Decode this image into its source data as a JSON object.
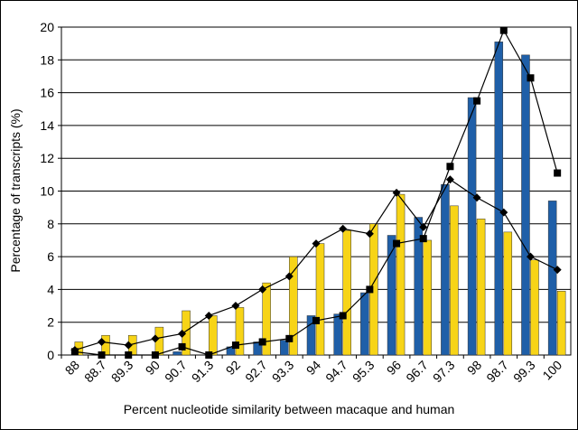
{
  "chart_data": {
    "type": "bar_line",
    "x_label": "Percent nucleotide similarity between macaque and human",
    "y_label": "Percentage of transcripts (%)",
    "categories": [
      "88",
      "88.7",
      "89.3",
      "90",
      "90.7",
      "91.3",
      "92",
      "92.7",
      "93.3",
      "94",
      "94.7",
      "95.3",
      "96",
      "96.7",
      "97.3",
      "98",
      "98.7",
      "99.3",
      "100"
    ],
    "series": [
      {
        "kind": "bar",
        "color": "#1f5fa8",
        "values": [
          0,
          0,
          0,
          0,
          0.2,
          0,
          0.5,
          0.8,
          0.9,
          2.4,
          2.5,
          3.8,
          7.3,
          8.4,
          10.4,
          15.7,
          19.1,
          18.3,
          9.4
        ]
      },
      {
        "kind": "bar",
        "color": "#f7d417",
        "values": [
          0.8,
          1.2,
          1.2,
          1.7,
          2.7,
          2.4,
          2.9,
          4.4,
          6.0,
          6.8,
          7.6,
          8.0,
          9.8,
          7.0,
          9.1,
          8.3,
          7.5,
          5.8,
          3.9
        ]
      },
      {
        "kind": "line",
        "marker": "square",
        "color": "#000000",
        "values": [
          0.2,
          0,
          0,
          0,
          0.5,
          0,
          0.6,
          0.8,
          1.0,
          2.1,
          2.4,
          4.0,
          6.8,
          7.1,
          11.5,
          15.5,
          19.8,
          16.9,
          11.1
        ]
      },
      {
        "kind": "line",
        "marker": "diamond",
        "color": "#000000",
        "values": [
          0.3,
          0.8,
          0.6,
          1.0,
          1.3,
          2.4,
          3.0,
          4.0,
          4.8,
          6.8,
          7.7,
          7.4,
          9.9,
          7.8,
          10.7,
          9.6,
          8.7,
          6.0,
          5.2
        ]
      }
    ],
    "ylim": [
      0,
      20
    ],
    "yticks": [
      0,
      2,
      4,
      6,
      8,
      10,
      12,
      14,
      16,
      18,
      20
    ],
    "grid": true
  }
}
